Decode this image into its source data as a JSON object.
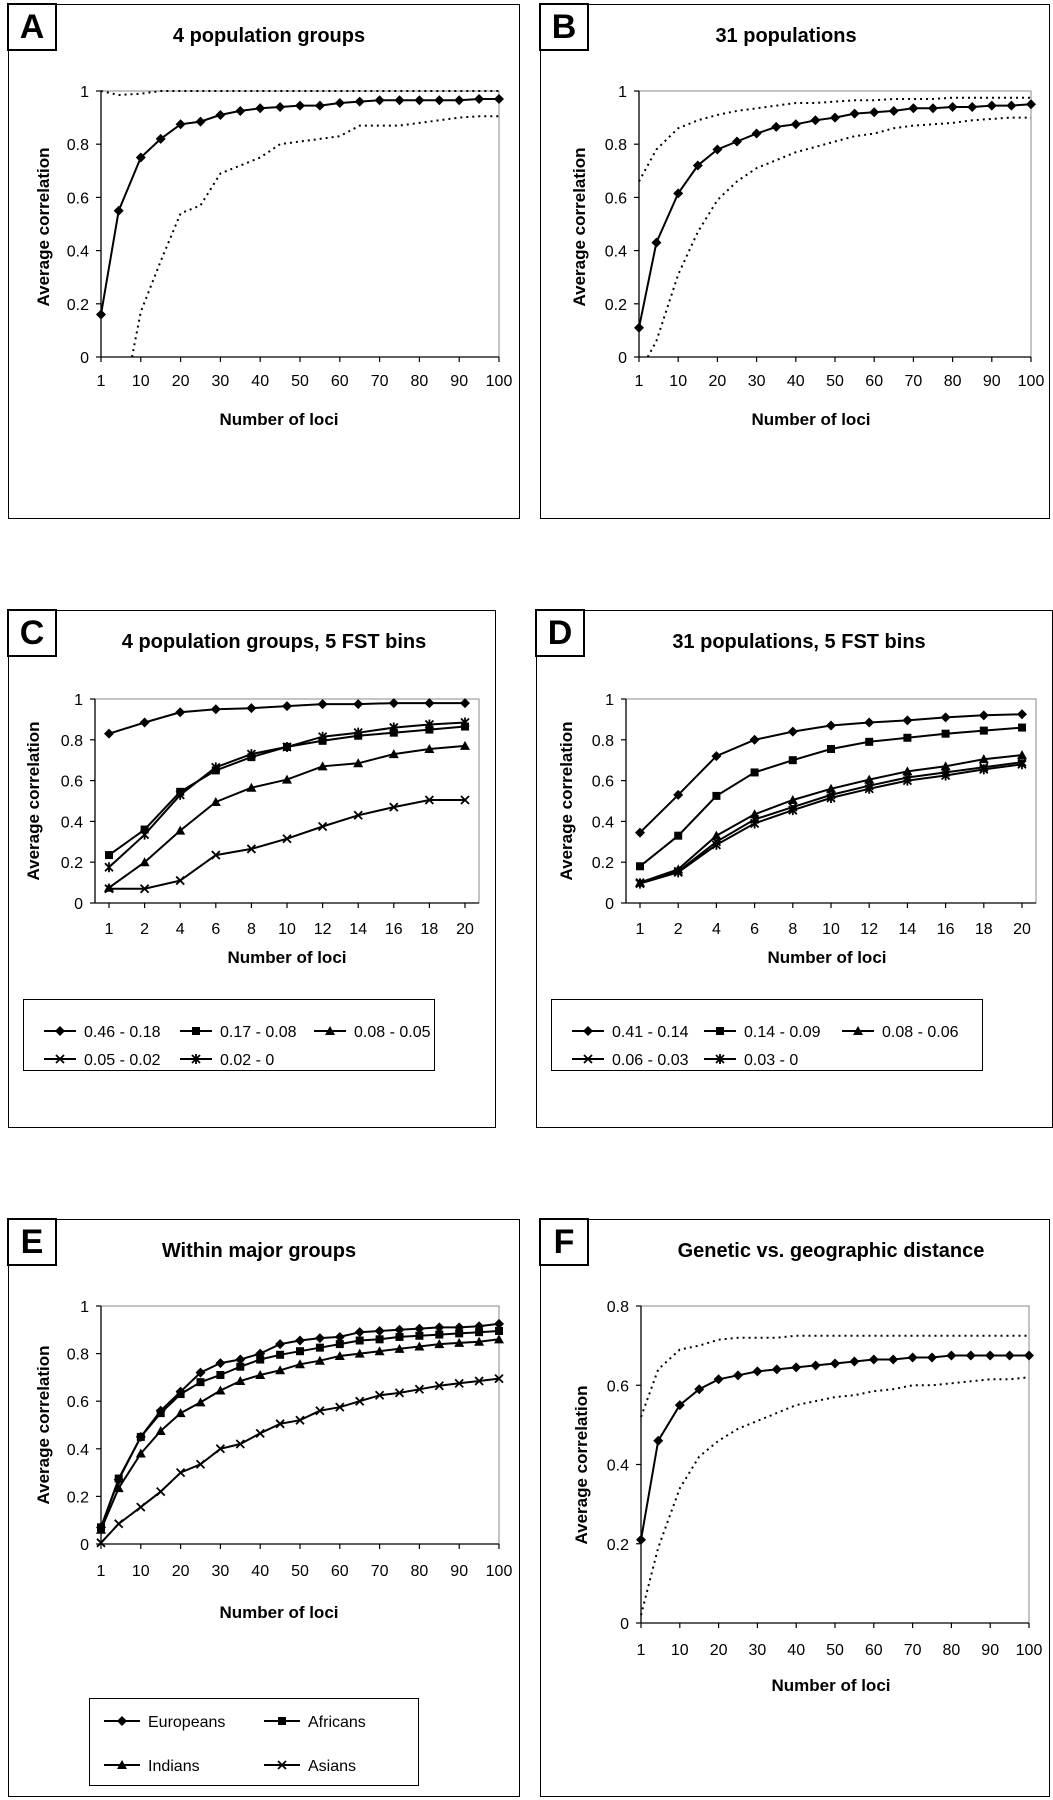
{
  "chart_data": [
    {
      "id": "A",
      "type": "line",
      "title": "4 population groups",
      "xlabel": "Number of loci",
      "ylabel": "Average correlation",
      "xticks": [
        "1",
        "10",
        "20",
        "30",
        "40",
        "50",
        "60",
        "70",
        "80",
        "90",
        "100"
      ],
      "yticks": [
        "0",
        "0.2",
        "0.4",
        "0.6",
        "0.8",
        "1"
      ],
      "ylim": [
        0,
        1
      ],
      "xlim": [
        1,
        100
      ],
      "series": [
        {
          "style": "marker",
          "x": [
            1,
            5,
            10,
            15,
            20,
            25,
            30,
            35,
            40,
            45,
            50,
            55,
            60,
            65,
            70,
            75,
            80,
            85,
            90,
            95,
            100
          ],
          "values": [
            0.16,
            0.55,
            0.75,
            0.82,
            0.875,
            0.885,
            0.91,
            0.925,
            0.935,
            0.94,
            0.945,
            0.945,
            0.955,
            0.96,
            0.965,
            0.965,
            0.965,
            0.965,
            0.965,
            0.97,
            0.97
          ]
        },
        {
          "style": "dotted",
          "x": [
            1,
            5,
            10,
            15,
            20,
            25,
            30,
            35,
            40,
            45,
            50,
            55,
            60,
            65,
            70,
            75,
            80,
            85,
            90,
            95,
            100
          ],
          "values": [
            1.0,
            0.985,
            0.99,
            1.0,
            1.0,
            1.0,
            1.0,
            1.0,
            1.0,
            1.0,
            1.0,
            1.0,
            1.0,
            1.0,
            1.0,
            1.0,
            1.0,
            1.0,
            1.0,
            1.0,
            1.0
          ]
        },
        {
          "style": "dotted",
          "x": [
            8,
            10,
            15,
            20,
            25,
            30,
            35,
            40,
            45,
            50,
            55,
            60,
            65,
            70,
            75,
            80,
            85,
            90,
            95,
            100
          ],
          "values": [
            0.0,
            0.17,
            0.36,
            0.54,
            0.57,
            0.69,
            0.72,
            0.75,
            0.8,
            0.81,
            0.82,
            0.83,
            0.87,
            0.87,
            0.87,
            0.88,
            0.89,
            0.9,
            0.905,
            0.905
          ]
        }
      ]
    },
    {
      "id": "B",
      "type": "line",
      "title": "31 populations",
      "xlabel": "Number of loci",
      "ylabel": "Average correlation",
      "xticks": [
        "1",
        "10",
        "20",
        "30",
        "40",
        "50",
        "60",
        "70",
        "80",
        "90",
        "100"
      ],
      "yticks": [
        "0",
        "0.2",
        "0.4",
        "0.6",
        "0.8",
        "1"
      ],
      "ylim": [
        0,
        1
      ],
      "xlim": [
        1,
        100
      ],
      "series": [
        {
          "style": "marker",
          "x": [
            1,
            5,
            10,
            15,
            20,
            25,
            30,
            35,
            40,
            45,
            50,
            55,
            60,
            65,
            70,
            75,
            80,
            85,
            90,
            95,
            100
          ],
          "values": [
            0.11,
            0.43,
            0.615,
            0.72,
            0.78,
            0.81,
            0.84,
            0.865,
            0.875,
            0.89,
            0.9,
            0.915,
            0.92,
            0.925,
            0.935,
            0.935,
            0.94,
            0.94,
            0.945,
            0.945,
            0.95
          ]
        },
        {
          "style": "dotted",
          "x": [
            1,
            5,
            10,
            15,
            20,
            25,
            30,
            35,
            40,
            45,
            50,
            55,
            60,
            65,
            70,
            75,
            80,
            85,
            90,
            95,
            100
          ],
          "values": [
            0.66,
            0.78,
            0.86,
            0.89,
            0.91,
            0.925,
            0.935,
            0.945,
            0.955,
            0.955,
            0.96,
            0.965,
            0.965,
            0.97,
            0.97,
            0.97,
            0.975,
            0.975,
            0.975,
            0.975,
            0.975
          ]
        },
        {
          "style": "dotted",
          "x": [
            3,
            5,
            10,
            15,
            20,
            25,
            30,
            35,
            40,
            45,
            50,
            55,
            60,
            65,
            70,
            75,
            80,
            85,
            90,
            95,
            100
          ],
          "values": [
            0.0,
            0.06,
            0.31,
            0.47,
            0.59,
            0.66,
            0.71,
            0.74,
            0.77,
            0.79,
            0.81,
            0.83,
            0.84,
            0.86,
            0.87,
            0.875,
            0.88,
            0.89,
            0.895,
            0.9,
            0.9
          ]
        }
      ]
    },
    {
      "id": "C",
      "type": "line",
      "title": "4 population groups, 5 FST bins",
      "xlabel": "Number of loci",
      "ylabel": "Average correlation",
      "xticks": [
        "1",
        "2",
        "4",
        "6",
        "8",
        "10",
        "12",
        "14",
        "16",
        "18",
        "20"
      ],
      "yticks": [
        "0",
        "0.2",
        "0.4",
        "0.6",
        "0.8",
        "1"
      ],
      "ylim": [
        0,
        1
      ],
      "series": [
        {
          "name": "0.46 - 0.18",
          "marker": "diamond",
          "values": [
            0.83,
            0.885,
            0.935,
            0.95,
            0.955,
            0.965,
            0.975,
            0.975,
            0.98,
            0.98,
            0.98
          ]
        },
        {
          "name": "0.17 - 0.08",
          "marker": "square",
          "values": [
            0.235,
            0.36,
            0.545,
            0.65,
            0.715,
            0.765,
            0.795,
            0.82,
            0.835,
            0.85,
            0.865
          ]
        },
        {
          "name": "0.08 - 0.05",
          "marker": "triangle",
          "values": [
            0.075,
            0.2,
            0.355,
            0.495,
            0.565,
            0.605,
            0.67,
            0.685,
            0.73,
            0.755,
            0.77
          ]
        },
        {
          "name": "0.05 - 0.02",
          "marker": "x",
          "values": [
            0.07,
            0.07,
            0.11,
            0.235,
            0.265,
            0.315,
            0.375,
            0.43,
            0.47,
            0.505,
            0.505
          ]
        },
        {
          "name": "0.02 - 0",
          "marker": "star",
          "values": [
            0.175,
            0.335,
            0.53,
            0.665,
            0.73,
            0.765,
            0.815,
            0.835,
            0.86,
            0.875,
            0.885
          ]
        }
      ]
    },
    {
      "id": "D",
      "type": "line",
      "title": "31 populations, 5 FST bins",
      "xlabel": "Number of loci",
      "ylabel": "Average correlation",
      "xticks": [
        "1",
        "2",
        "4",
        "6",
        "8",
        "10",
        "12",
        "14",
        "16",
        "18",
        "20"
      ],
      "yticks": [
        "0",
        "0.2",
        "0.4",
        "0.6",
        "0.8",
        "1"
      ],
      "ylim": [
        0,
        1
      ],
      "series": [
        {
          "name": "0.41 - 0.14",
          "marker": "diamond",
          "values": [
            0.345,
            0.53,
            0.72,
            0.8,
            0.84,
            0.87,
            0.885,
            0.895,
            0.91,
            0.92,
            0.925
          ]
        },
        {
          "name": "0.14 - 0.09",
          "marker": "square",
          "values": [
            0.18,
            0.33,
            0.525,
            0.64,
            0.7,
            0.755,
            0.79,
            0.81,
            0.83,
            0.845,
            0.86
          ]
        },
        {
          "name": "0.08 - 0.06",
          "marker": "triangle",
          "values": [
            0.1,
            0.165,
            0.33,
            0.435,
            0.505,
            0.56,
            0.605,
            0.645,
            0.67,
            0.705,
            0.725
          ]
        },
        {
          "name": "0.06 - 0.03",
          "marker": "x",
          "values": [
            0.1,
            0.155,
            0.3,
            0.41,
            0.47,
            0.53,
            0.575,
            0.615,
            0.64,
            0.665,
            0.69
          ]
        },
        {
          "name": "0.03 - 0",
          "marker": "star",
          "values": [
            0.095,
            0.15,
            0.285,
            0.39,
            0.455,
            0.515,
            0.56,
            0.6,
            0.625,
            0.655,
            0.68
          ]
        }
      ]
    },
    {
      "id": "E",
      "type": "line",
      "title": "Within major groups",
      "xlabel": "Number of loci",
      "ylabel": "Average correlation",
      "xticks": [
        "1",
        "10",
        "20",
        "30",
        "40",
        "50",
        "60",
        "70",
        "80",
        "90",
        "100"
      ],
      "yticks": [
        "0",
        "0.2",
        "0.4",
        "0.6",
        "0.8",
        "1"
      ],
      "ylim": [
        0,
        1
      ],
      "xlim": [
        1,
        100
      ],
      "x": [
        1,
        5,
        10,
        15,
        20,
        25,
        30,
        35,
        40,
        45,
        50,
        55,
        60,
        65,
        70,
        75,
        80,
        85,
        90,
        95,
        100
      ],
      "series": [
        {
          "name": "Europeans",
          "marker": "diamond",
          "values": [
            0.07,
            0.27,
            0.45,
            0.56,
            0.64,
            0.72,
            0.76,
            0.775,
            0.8,
            0.84,
            0.855,
            0.865,
            0.87,
            0.89,
            0.895,
            0.9,
            0.905,
            0.91,
            0.91,
            0.915,
            0.925
          ]
        },
        {
          "name": "Africans",
          "marker": "square",
          "values": [
            0.07,
            0.275,
            0.45,
            0.55,
            0.63,
            0.68,
            0.71,
            0.745,
            0.775,
            0.795,
            0.81,
            0.825,
            0.84,
            0.855,
            0.86,
            0.87,
            0.875,
            0.88,
            0.885,
            0.89,
            0.895
          ]
        },
        {
          "name": "Indians",
          "marker": "triangle",
          "values": [
            0.06,
            0.235,
            0.38,
            0.475,
            0.55,
            0.595,
            0.645,
            0.685,
            0.71,
            0.73,
            0.755,
            0.77,
            0.79,
            0.8,
            0.81,
            0.82,
            0.83,
            0.84,
            0.845,
            0.85,
            0.86
          ]
        },
        {
          "name": "Asians",
          "marker": "x",
          "values": [
            0.005,
            0.085,
            0.155,
            0.22,
            0.3,
            0.335,
            0.4,
            0.42,
            0.465,
            0.505,
            0.52,
            0.56,
            0.575,
            0.6,
            0.625,
            0.635,
            0.65,
            0.665,
            0.675,
            0.685,
            0.695
          ]
        }
      ]
    },
    {
      "id": "F",
      "type": "line",
      "title": "Genetic vs. geographic distance",
      "xlabel": "Number of loci",
      "ylabel": "Average correlation",
      "xticks": [
        "1",
        "10",
        "20",
        "30",
        "40",
        "50",
        "60",
        "70",
        "80",
        "90",
        "100"
      ],
      "yticks": [
        "0",
        "0.2",
        "0.4",
        "0.6",
        "0.8"
      ],
      "ylim": [
        0,
        0.8
      ],
      "xlim": [
        1,
        100
      ],
      "series": [
        {
          "style": "marker",
          "x": [
            1,
            5,
            10,
            15,
            20,
            25,
            30,
            35,
            40,
            45,
            50,
            55,
            60,
            65,
            70,
            75,
            80,
            85,
            90,
            95,
            100
          ],
          "values": [
            0.21,
            0.46,
            0.55,
            0.59,
            0.615,
            0.625,
            0.635,
            0.64,
            0.645,
            0.65,
            0.655,
            0.66,
            0.665,
            0.665,
            0.67,
            0.67,
            0.675,
            0.675,
            0.675,
            0.675,
            0.675
          ]
        },
        {
          "style": "dotted",
          "x": [
            1,
            5,
            10,
            15,
            20,
            25,
            30,
            35,
            40,
            45,
            50,
            55,
            60,
            65,
            70,
            75,
            80,
            85,
            90,
            95,
            100
          ],
          "values": [
            0.52,
            0.64,
            0.69,
            0.7,
            0.715,
            0.72,
            0.72,
            0.72,
            0.725,
            0.725,
            0.725,
            0.725,
            0.725,
            0.725,
            0.725,
            0.725,
            0.725,
            0.725,
            0.725,
            0.725,
            0.725
          ]
        },
        {
          "style": "dotted",
          "x": [
            1,
            5,
            10,
            15,
            20,
            25,
            30,
            35,
            40,
            45,
            50,
            55,
            60,
            65,
            70,
            75,
            80,
            85,
            90,
            95,
            100
          ],
          "values": [
            0.02,
            0.19,
            0.34,
            0.42,
            0.46,
            0.49,
            0.51,
            0.53,
            0.55,
            0.56,
            0.57,
            0.575,
            0.585,
            0.59,
            0.6,
            0.6,
            0.605,
            0.61,
            0.615,
            0.615,
            0.62
          ]
        }
      ]
    }
  ]
}
